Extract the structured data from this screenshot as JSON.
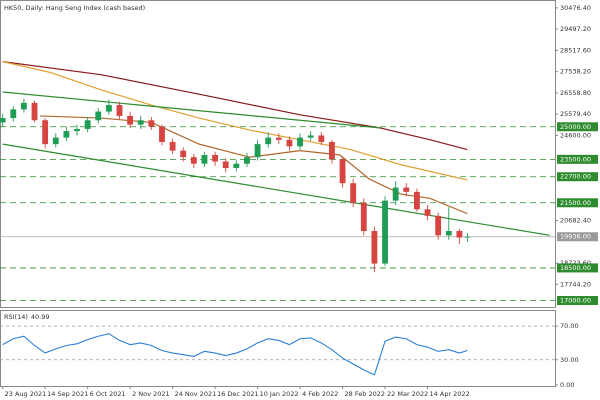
{
  "chart_data": [
    {
      "type": "candlestick",
      "title": "HK50, Daily:  Hang Seng Index (cash based)",
      "x": [
        0,
        4,
        8,
        12,
        16,
        20,
        24,
        28,
        32,
        36,
        40,
        44,
        48,
        52,
        56,
        60,
        64,
        68,
        72,
        76,
        80,
        84,
        88,
        92,
        96,
        100,
        104,
        108,
        112,
        116,
        120,
        124,
        128,
        132,
        136,
        140,
        144,
        148,
        152,
        156,
        160,
        164,
        168,
        172,
        175
      ],
      "open": [
        25200,
        25400,
        25800,
        26100,
        25300,
        24200,
        24500,
        24800,
        24900,
        25300,
        25700,
        26000,
        25500,
        25100,
        25300,
        25000,
        24300,
        23900,
        23600,
        23300,
        23700,
        23400,
        23100,
        23300,
        23600,
        24200,
        24500,
        24400,
        24100,
        24500,
        24600,
        24300,
        23500,
        22400,
        21500,
        20200,
        18700,
        21600,
        22200,
        22000,
        21200,
        20900,
        20000,
        20200,
        19900
      ],
      "high": [
        25600,
        25950,
        26300,
        26200,
        25400,
        24700,
        25000,
        25100,
        25450,
        25850,
        26250,
        26150,
        25700,
        25500,
        25450,
        25100,
        24450,
        24050,
        23750,
        23850,
        23850,
        23550,
        23450,
        23800,
        24400,
        24750,
        24700,
        24550,
        24700,
        24800,
        24750,
        24400,
        23600,
        22600,
        21700,
        20400,
        21800,
        22500,
        22400,
        22150,
        21400,
        21050,
        21300,
        20300,
        20100
      ],
      "low": [
        25000,
        25250,
        25650,
        25200,
        24000,
        24050,
        24350,
        24600,
        24750,
        25150,
        25550,
        25350,
        24950,
        24900,
        24850,
        24150,
        23750,
        23400,
        23100,
        23150,
        23200,
        22900,
        22950,
        23150,
        23450,
        24050,
        24200,
        23900,
        23950,
        24350,
        24150,
        23300,
        22200,
        21300,
        20000,
        18300,
        18600,
        21400,
        21800,
        21100,
        20700,
        19800,
        19800,
        19600,
        19700
      ],
      "close": [
        25400,
        25800,
        26100,
        25300,
        24200,
        24500,
        24800,
        24900,
        25300,
        25700,
        26000,
        25500,
        25100,
        25300,
        25000,
        24300,
        23900,
        23600,
        23300,
        23700,
        23400,
        23100,
        23300,
        23600,
        24200,
        24500,
        24400,
        24100,
        24500,
        24600,
        24300,
        23500,
        22400,
        21500,
        20200,
        18700,
        21600,
        22200,
        22000,
        21200,
        20900,
        20000,
        20200,
        19900,
        19936
      ],
      "up_color": "#1f9d55",
      "down_color": "#d64541",
      "xlim": [
        -1,
        208
      ],
      "ylim": [
        16700,
        30700
      ],
      "yticks": [
        {
          "value": 30476.4,
          "label": "30476.40"
        },
        {
          "value": 29497.2,
          "label": "29497.20"
        },
        {
          "value": 28517.6,
          "label": "28517.60"
        },
        {
          "value": 27538.2,
          "label": "27538.20"
        },
        {
          "value": 26558.8,
          "label": "26558.80"
        },
        {
          "value": 25579.4,
          "label": "25579.40"
        },
        {
          "value": 24600,
          "label": "24600.00"
        },
        {
          "value": 20682.4,
          "label": "20682.40"
        },
        {
          "value": 18723.6,
          "label": "18723.60"
        },
        {
          "value": 17744.2,
          "label": "17744.20"
        }
      ],
      "lines": [
        {
          "color": "#8b1a1a",
          "x": [
            0,
            37,
            74,
            112,
            142,
            161,
            175
          ],
          "values": [
            28000,
            27400,
            26500,
            25550,
            24950,
            24400,
            23950
          ]
        },
        {
          "color": "#e0a030",
          "x": [
            0,
            18,
            37,
            56,
            74,
            93,
            112,
            131,
            150,
            175
          ],
          "values": [
            28000,
            27500,
            26700,
            26000,
            25400,
            24850,
            24400,
            23950,
            23250,
            22550
          ]
        },
        {
          "color": "#b0672a",
          "x": [
            14,
            37,
            56,
            74,
            93,
            112,
            127,
            138,
            150,
            161,
            175
          ],
          "values": [
            25500,
            25400,
            25200,
            24200,
            23600,
            23900,
            23700,
            22600,
            21900,
            21700,
            21000
          ]
        }
      ],
      "trendlines": [
        {
          "color": "#2e8b2e",
          "x": [
            0,
            142
          ],
          "values": [
            26600,
            24950
          ]
        },
        {
          "color": "#2e8b2e",
          "x": [
            0,
            206
          ],
          "values": [
            24200,
            20000
          ]
        }
      ],
      "levels": [
        {
          "value": 25000,
          "label": "25000.00"
        },
        {
          "value": 23500,
          "label": "23500.00"
        },
        {
          "value": 22700,
          "label": "22700.00"
        },
        {
          "value": 21500,
          "label": "21500.00"
        },
        {
          "value": 18500,
          "label": "18500.00"
        },
        {
          "value": 17000,
          "label": "17000.00"
        }
      ],
      "level_color": "#2e8b2e",
      "current_price": {
        "value": 19936,
        "label": "19936.00"
      }
    },
    {
      "type": "line",
      "title": "RSI(14)",
      "x": [
        0,
        4,
        8,
        12,
        16,
        20,
        24,
        28,
        32,
        36,
        40,
        44,
        48,
        52,
        56,
        60,
        64,
        68,
        72,
        76,
        80,
        84,
        88,
        92,
        96,
        100,
        104,
        108,
        112,
        116,
        120,
        124,
        128,
        132,
        136,
        140,
        144,
        148,
        152,
        156,
        160,
        164,
        168,
        172,
        175
      ],
      "values": [
        48,
        55,
        58,
        47,
        38,
        43,
        47,
        49,
        54,
        58,
        61,
        53,
        48,
        50,
        47,
        41,
        38,
        36,
        34,
        40,
        38,
        35,
        38,
        43,
        50,
        55,
        53,
        48,
        55,
        56,
        50,
        42,
        32,
        25,
        18,
        12,
        52,
        57,
        55,
        48,
        45,
        40,
        42,
        38,
        40.99
      ],
      "color": "#2a7fd4",
      "xlim": [
        -1,
        208
      ],
      "ylim": [
        0,
        88
      ],
      "yticks": [
        {
          "value": 70,
          "label": "70.00"
        },
        {
          "value": 30,
          "label": "30.00"
        },
        {
          "value": 0,
          "label": "0.00"
        }
      ],
      "levels": [
        70,
        30
      ],
      "xticks": [
        {
          "value": 0,
          "label": "23 Aug 2021"
        },
        {
          "value": 16,
          "label": "14 Sep 2021"
        },
        {
          "value": 32,
          "label": "6 Oct 2021"
        },
        {
          "value": 48,
          "label": "2 Nov 2021"
        },
        {
          "value": 64,
          "label": "24 Nov 2021"
        },
        {
          "value": 80,
          "label": "16 Dec 2021"
        },
        {
          "value": 96,
          "label": "10 Jan 2022"
        },
        {
          "value": 112,
          "label": "4 Feb 2022"
        },
        {
          "value": 128,
          "label": "28 Feb 2022"
        },
        {
          "value": 144,
          "label": "22 Mar 2022"
        },
        {
          "value": 160,
          "label": "14 Apr 2022"
        }
      ]
    }
  ]
}
